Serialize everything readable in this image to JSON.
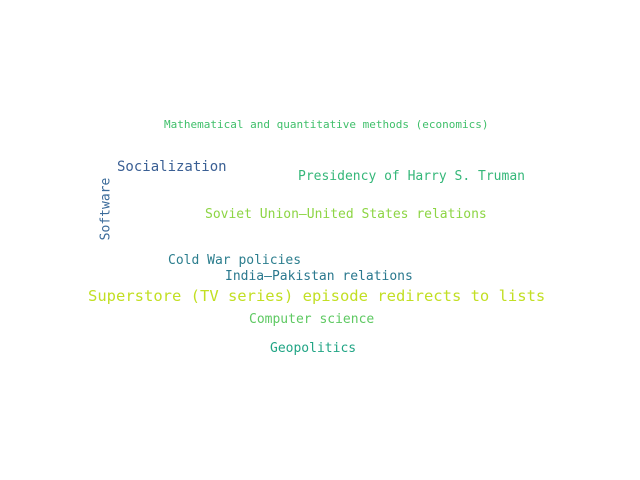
{
  "colors": {
    "background": "#ffffff"
  },
  "words": [
    {
      "id": "w-math",
      "text": "Mathematical and quantitative methods (economics)",
      "color": "#3fbf6a",
      "orientation": "horizontal"
    },
    {
      "id": "w-social",
      "text": "Socialization",
      "color": "#3a5f94",
      "orientation": "horizontal"
    },
    {
      "id": "w-truman",
      "text": "Presidency of Harry S. Truman",
      "color": "#35b779",
      "orientation": "horizontal"
    },
    {
      "id": "w-soviet",
      "text": "Soviet Union–United States relations",
      "color": "#8dd544",
      "orientation": "horizontal"
    },
    {
      "id": "w-software",
      "text": "Software",
      "color": "#3b6b9a",
      "orientation": "vertical"
    },
    {
      "id": "w-coldwar",
      "text": "Cold War policies",
      "color": "#2c7e8e",
      "orientation": "horizontal"
    },
    {
      "id": "w-india",
      "text": "India–Pakistan relations",
      "color": "#2a788e",
      "orientation": "horizontal"
    },
    {
      "id": "w-superstore",
      "text": "Superstore (TV series) episode redirects to lists",
      "color": "#c2df23",
      "orientation": "horizontal"
    },
    {
      "id": "w-cs",
      "text": "Computer science",
      "color": "#5ec962",
      "orientation": "horizontal"
    },
    {
      "id": "w-geo",
      "text": "Geopolitics",
      "color": "#21a585",
      "orientation": "horizontal"
    }
  ]
}
